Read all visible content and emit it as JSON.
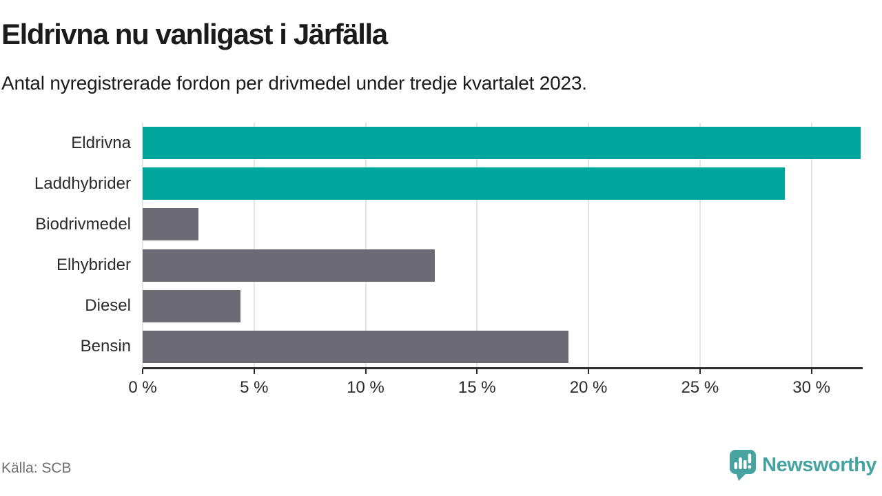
{
  "header": {
    "title": "Eldrivna nu vanligast i Järfälla",
    "subtitle": "Antal nyregistrerade fordon per drivmedel under tredje kvartalet 2023."
  },
  "chart_data": {
    "type": "bar",
    "orientation": "horizontal",
    "title": "Eldrivna nu vanligast i Järfälla",
    "subtitle": "Antal nyregistrerade fordon per drivmedel under tredje kvartalet 2023.",
    "categories": [
      "Eldrivna",
      "Laddhybrider",
      "Biodrivmedel",
      "Elhybrider",
      "Diesel",
      "Bensin"
    ],
    "values": [
      32.2,
      28.8,
      2.5,
      13.1,
      4.4,
      19.1
    ],
    "unit": "%",
    "xlim": [
      0,
      32.3
    ],
    "xticks": [
      0,
      5,
      10,
      15,
      20,
      25,
      30
    ],
    "tick_suffix": " %",
    "grid": "vertical",
    "highlight_color": "#00a69b",
    "default_color": "#6c6b74",
    "bar_colors": [
      "#00a69b",
      "#00a69b",
      "#6c6b74",
      "#6c6b74",
      "#6c6b74",
      "#6c6b74"
    ]
  },
  "footer": {
    "source": "Källa: SCB",
    "brand": "Newsworthy",
    "brand_color": "#46a3a0"
  }
}
